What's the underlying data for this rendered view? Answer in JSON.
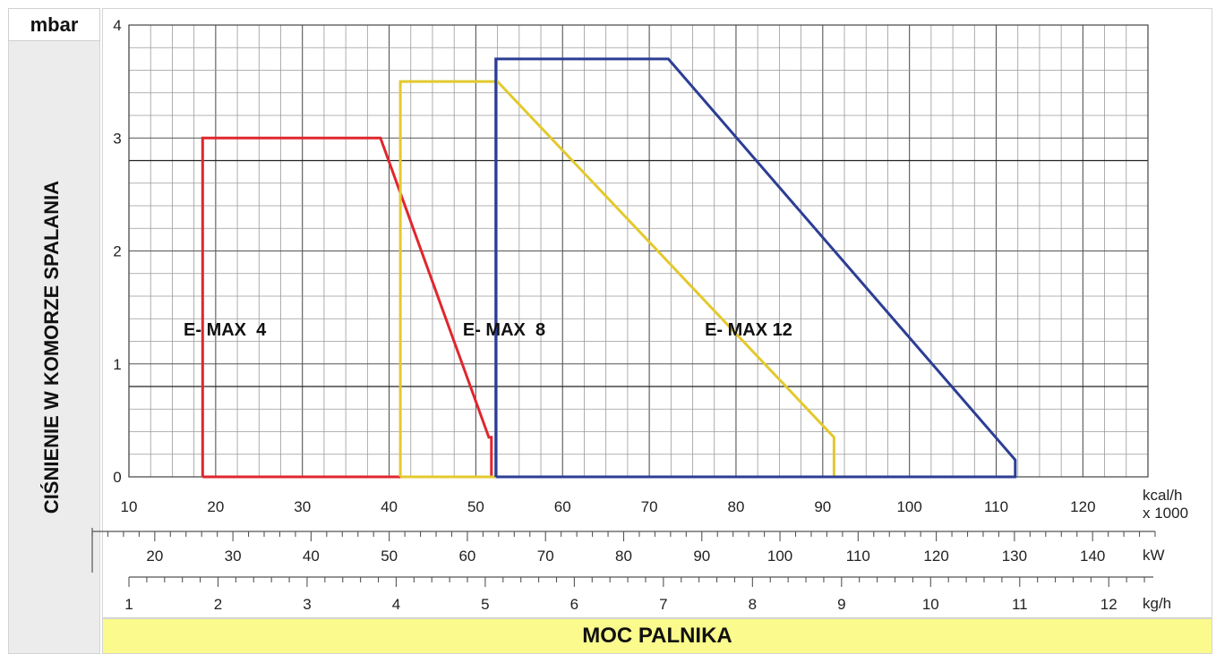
{
  "chart_data": {
    "type": "area",
    "ylabel": "CIŚNIENIE W KOMORZE SPALANIA",
    "yunit": "mbar",
    "xlabel": "MOC PALNIKA",
    "ylim": [
      0,
      4
    ],
    "yticks": [
      0,
      1,
      2,
      3,
      4
    ],
    "grid": true,
    "axes": [
      {
        "unit": "kcal/h x 1000",
        "unit_lines": [
          "kcal/h",
          "x 1000"
        ],
        "range": [
          10,
          127.5
        ],
        "ticks": [
          10,
          20,
          30,
          40,
          50,
          60,
          70,
          80,
          90,
          100,
          110,
          120
        ]
      },
      {
        "unit": "kW",
        "range": [
          12,
          148
        ],
        "ticks": [
          20,
          30,
          40,
          50,
          60,
          70,
          80,
          90,
          100,
          110,
          120,
          130,
          140
        ]
      },
      {
        "unit": "kg/h",
        "range": [
          1,
          12.5
        ],
        "ticks": [
          1,
          2,
          3,
          4,
          5,
          6,
          7,
          8,
          9,
          10,
          11,
          12
        ]
      }
    ],
    "series": [
      {
        "name": "E- MAX  4",
        "color": "#e0262e",
        "label_at": [
          16.3,
          1.25
        ],
        "x": [
          18.5,
          18.5,
          39,
          51.5,
          51.8,
          51.8,
          18.5
        ],
        "y": [
          0,
          3,
          3,
          0.35,
          0.35,
          0,
          0
        ]
      },
      {
        "name": "E- MAX  8",
        "color": "#e3c92e",
        "label_at": [
          48.5,
          1.25
        ],
        "x": [
          41.3,
          41.3,
          52.5,
          91.3,
          91.3,
          41.3
        ],
        "y": [
          0,
          3.5,
          3.5,
          0.35,
          0,
          0
        ]
      },
      {
        "name": "E- MAX 12",
        "color": "#2c3e94",
        "label_at": [
          76.4,
          1.25
        ],
        "x": [
          52.3,
          52.3,
          72.2,
          112.2,
          112.2,
          52.3
        ],
        "y": [
          0,
          3.7,
          3.7,
          0.15,
          0,
          0
        ]
      }
    ]
  }
}
